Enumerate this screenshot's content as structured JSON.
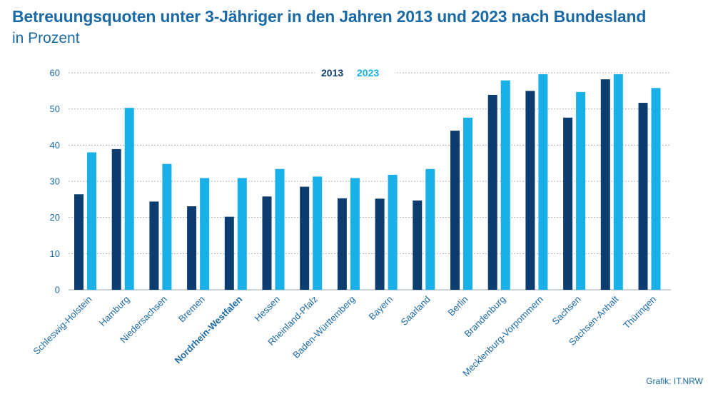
{
  "title": "Betreuungsquoten unter 3-Jähriger in den Jahren 2013 und 2023 nach Bundesland",
  "subtitle": "in Prozent",
  "credit": "Grafik: IT.NRW",
  "colors": {
    "series_2013": "#0d3d6e",
    "series_2023": "#18b0e6",
    "text": "#1c6aa5",
    "grid": "#b4b4b4",
    "axis": "#9aa7b3"
  },
  "chart_data": {
    "type": "bar",
    "title": "Betreuungsquoten unter 3-Jähriger in den Jahren 2013 und 2023 nach Bundesland",
    "subtitle": "in Prozent",
    "categories": [
      "Schleswig-Holstein",
      "Hamburg",
      "Niedersachsen",
      "Bremen",
      "Nordrhein-Westfalen",
      "Hessen",
      "Rheinland-Pfalz",
      "Baden-Württemberg",
      "Bayern",
      "Saarland",
      "Berlin",
      "Brandenburg",
      "Mecklenburg-Vorpommern",
      "Sachsen",
      "Sachsen-Anhalt",
      "Thüringen"
    ],
    "highlight_category": "Nordrhein-Westfalen",
    "series": [
      {
        "name": "2013",
        "color": "#0d3d6e",
        "values": [
          26.4,
          38.9,
          24.4,
          23.1,
          20.2,
          25.8,
          28.5,
          25.3,
          25.2,
          24.7,
          44.0,
          53.9,
          55.0,
          47.6,
          58.2,
          51.7
        ]
      },
      {
        "name": "2023",
        "color": "#18b0e6",
        "values": [
          38.0,
          50.3,
          34.8,
          30.9,
          30.9,
          33.4,
          31.3,
          30.9,
          31.8,
          33.4,
          47.6,
          57.9,
          59.6,
          54.7,
          59.6,
          55.8
        ]
      }
    ],
    "yticks": [
      0,
      10,
      20,
      30,
      40,
      50,
      60
    ],
    "ylim": [
      0,
      60
    ],
    "xlabel": "",
    "ylabel": "",
    "grid": true,
    "legend": "top-center"
  }
}
